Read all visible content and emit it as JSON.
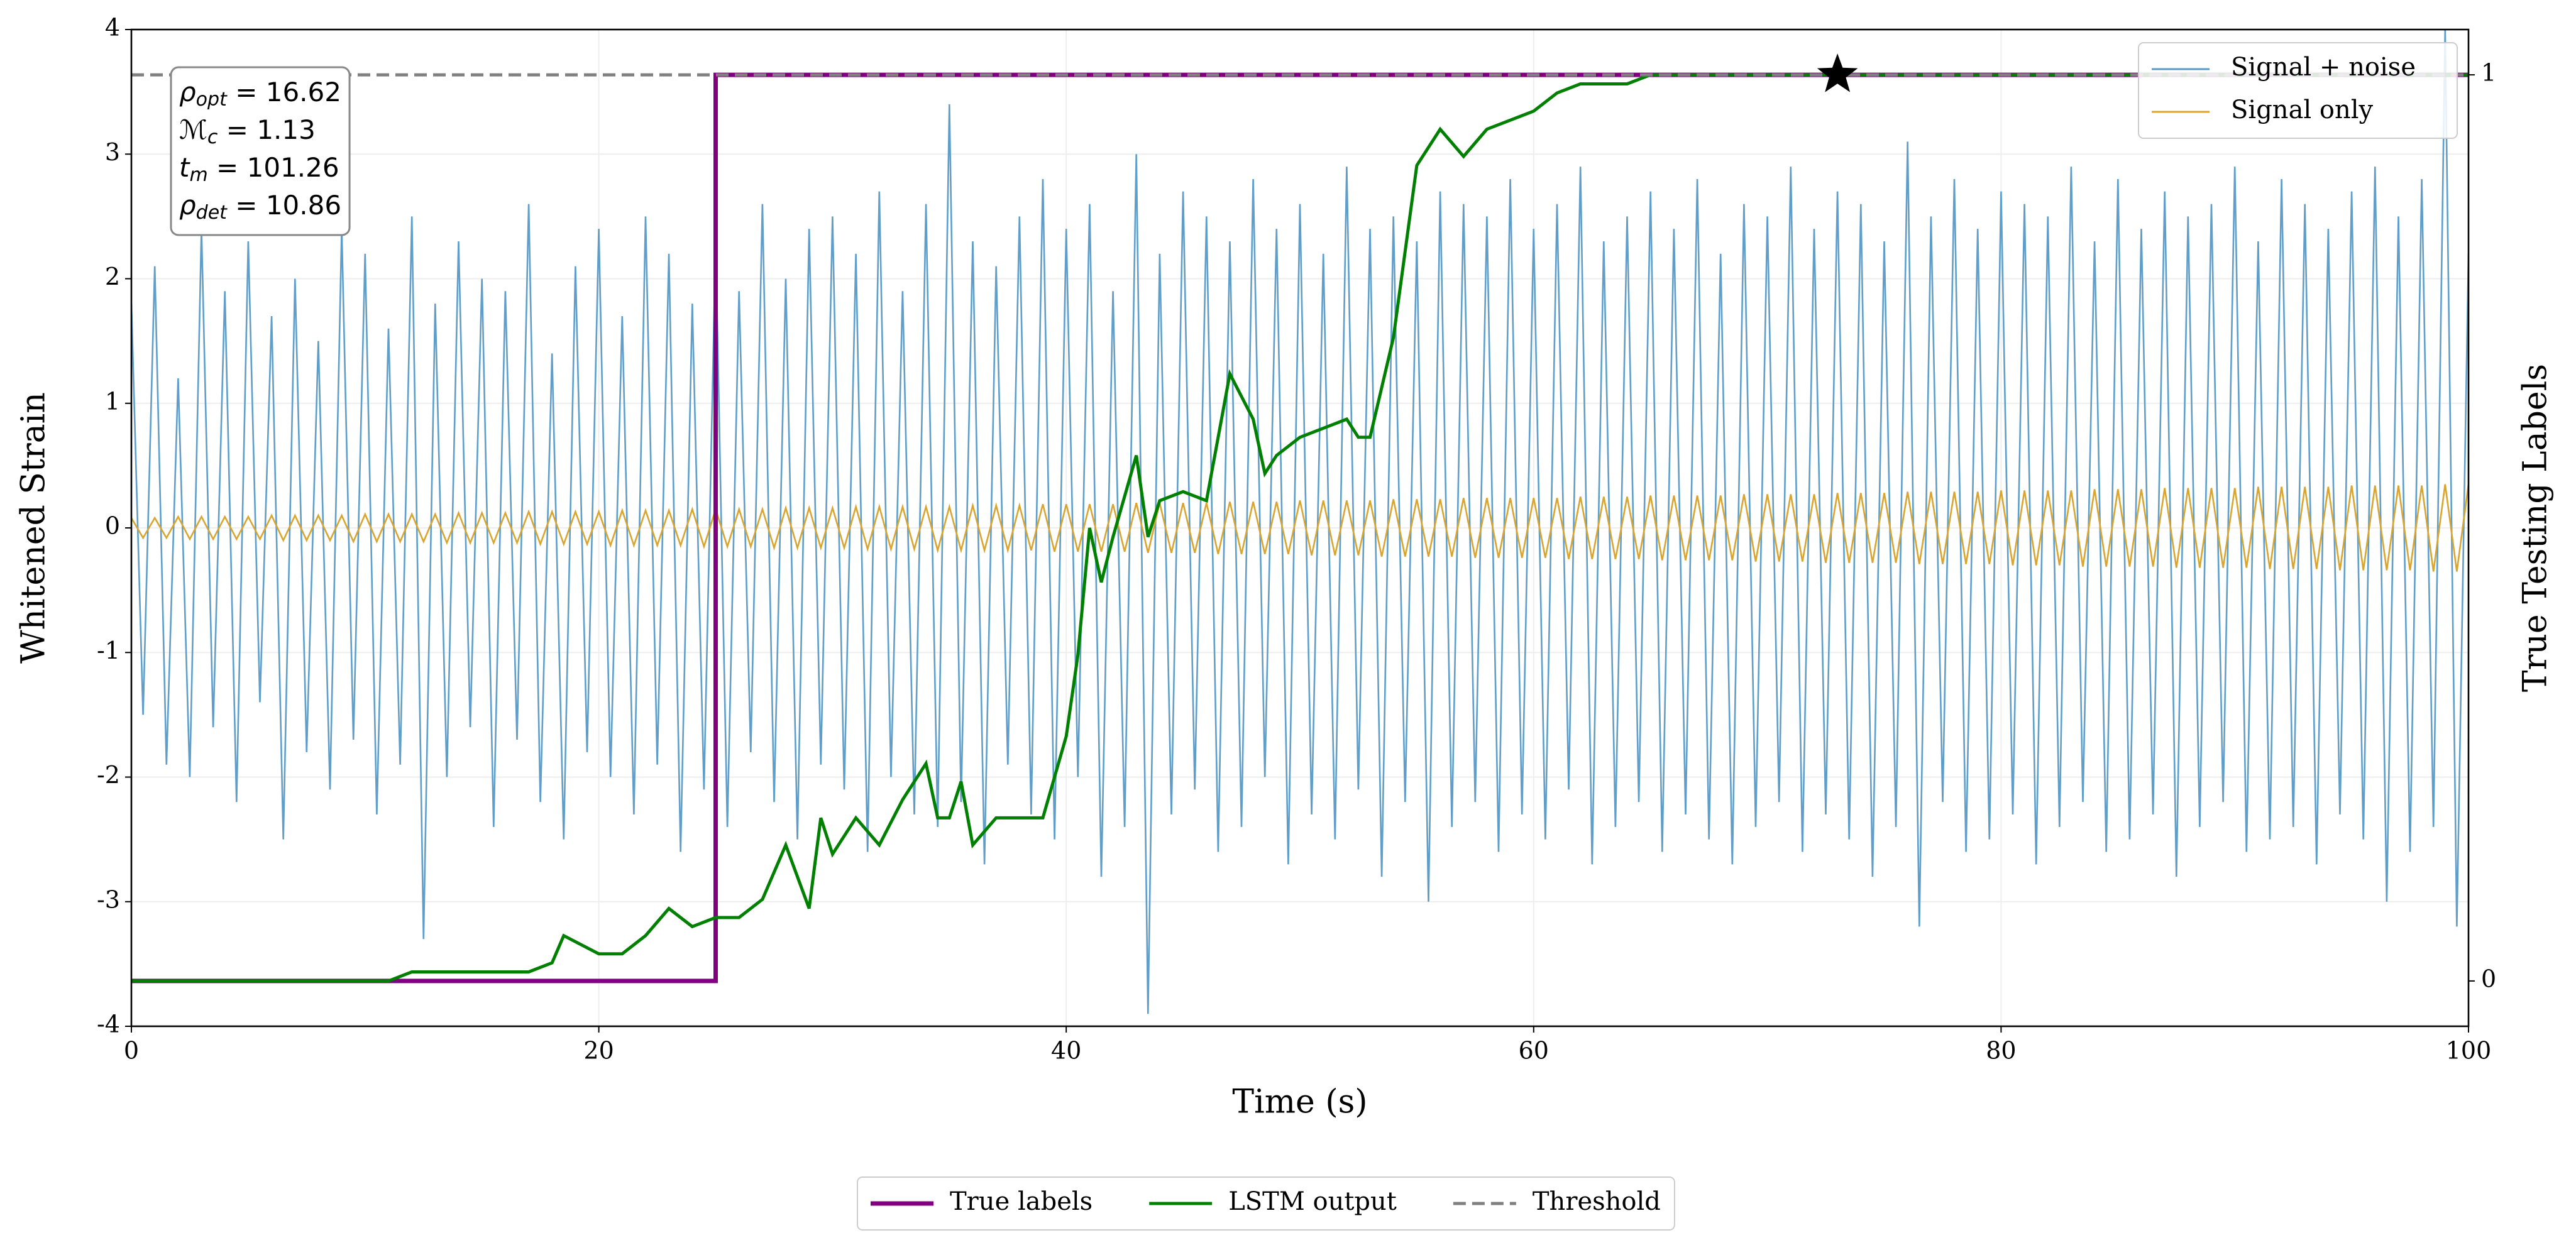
{
  "chart_data": {
    "type": "line",
    "xlabel": "Time (s)",
    "ylabel": "Whitened Strain",
    "y2label": "True Testing Labels",
    "xlim": [
      0,
      100
    ],
    "ylim": [
      -4,
      4
    ],
    "y2lim": [
      -0.05,
      1.05
    ],
    "xticks": [
      0,
      20,
      40,
      60,
      80,
      100
    ],
    "yticks": [
      -4,
      -3,
      -2,
      -1,
      0,
      1,
      2,
      3,
      4
    ],
    "y2ticks": [
      0,
      1
    ],
    "grid": true,
    "series": [
      {
        "name": "Signal + noise",
        "color": "#5799c7",
        "x": [
          0,
          0.5,
          1,
          1.5,
          2,
          2.5,
          3,
          3.5,
          4,
          4.5,
          5,
          5.5,
          6,
          6.5,
          7,
          7.5,
          8,
          8.5,
          9,
          9.5,
          10,
          10.5,
          11,
          11.5,
          12,
          12.5,
          13,
          13.5,
          14,
          14.5,
          15,
          15.5,
          16,
          16.5,
          17,
          17.5,
          18,
          18.5,
          19,
          19.5,
          20,
          20.5,
          21,
          21.5,
          22,
          22.5,
          23,
          23.5,
          24,
          24.5,
          25,
          25.5,
          26,
          26.5,
          27,
          27.5,
          28,
          28.5,
          29,
          29.5,
          30,
          30.5,
          31,
          31.5,
          32,
          32.5,
          33,
          33.5,
          34,
          34.5,
          35,
          35.5,
          36,
          36.5,
          37,
          37.5,
          38,
          38.5,
          39,
          39.5,
          40,
          40.5,
          41,
          41.5,
          42,
          42.5,
          43,
          43.5,
          44,
          44.5,
          45,
          45.5,
          46,
          46.5,
          47,
          47.5,
          48,
          48.5,
          49,
          49.5,
          50,
          50.5,
          51,
          51.5,
          52,
          52.5,
          53,
          53.5,
          54,
          54.5,
          55,
          55.5,
          56,
          56.5,
          57,
          57.5,
          58,
          58.5,
          59,
          59.5,
          60,
          60.5,
          61,
          61.5,
          62,
          62.5,
          63,
          63.5,
          64,
          64.5,
          65,
          65.5,
          66,
          66.5,
          67,
          67.5,
          68,
          68.5,
          69,
          69.5,
          70,
          70.5,
          71,
          71.5,
          72,
          72.5,
          73,
          73.5,
          74,
          74.5,
          75,
          75.5,
          76,
          76.5,
          77,
          77.5,
          78,
          78.5,
          79,
          79.5,
          80,
          80.5,
          81,
          81.5,
          82,
          82.5,
          83,
          83.5,
          84,
          84.5,
          85,
          85.5,
          86,
          86.5,
          87,
          87.5,
          88,
          88.5,
          89,
          89.5,
          90,
          90.5,
          91,
          91.5,
          92,
          92.5,
          93,
          93.5,
          94,
          94.5,
          95,
          95.5,
          96,
          96.5,
          97,
          97.5,
          98,
          98.5,
          99,
          99.5,
          100
        ],
        "values": [
          1.8,
          -1.5,
          2.1,
          -1.9,
          1.2,
          -2.0,
          2.4,
          -1.6,
          1.9,
          -2.2,
          2.3,
          -1.4,
          1.7,
          -2.5,
          2.0,
          -1.8,
          1.5,
          -2.1,
          2.4,
          -1.7,
          2.2,
          -2.3,
          1.6,
          -1.9,
          2.5,
          -3.3,
          1.8,
          -2.0,
          2.3,
          -1.6,
          2.0,
          -2.4,
          1.9,
          -1.7,
          2.6,
          -2.2,
          1.4,
          -2.5,
          2.1,
          -1.8,
          2.4,
          -2.0,
          1.7,
          -2.3,
          2.5,
          -1.9,
          2.2,
          -2.6,
          1.8,
          -2.1,
          2.3,
          -2.4,
          1.9,
          -1.8,
          2.6,
          -2.2,
          2.0,
          -2.5,
          2.4,
          -1.9,
          2.5,
          -2.1,
          2.2,
          -2.6,
          2.7,
          -2.0,
          1.9,
          -2.3,
          2.6,
          -2.4,
          3.4,
          -2.2,
          2.3,
          -2.7,
          2.1,
          -1.9,
          2.5,
          -2.3,
          2.8,
          -2.5,
          2.4,
          -2.0,
          2.6,
          -2.8,
          1.9,
          -2.4,
          3.0,
          -3.9,
          2.2,
          -2.3,
          2.7,
          -2.1,
          2.5,
          -2.6,
          2.3,
          -2.4,
          2.8,
          -2.0,
          2.4,
          -2.7,
          2.6,
          -2.3,
          2.2,
          -2.5,
          2.9,
          -2.1,
          2.4,
          -2.8,
          2.5,
          -2.2,
          2.3,
          -3.0,
          2.7,
          -2.4,
          2.6,
          -2.2,
          2.5,
          -2.6,
          2.8,
          -2.3,
          2.4,
          -2.5,
          2.6,
          -2.1,
          2.9,
          -2.7,
          2.3,
          -2.4,
          2.5,
          -2.2,
          2.7,
          -2.6,
          2.4,
          -2.3,
          2.8,
          -2.5,
          2.2,
          -2.7,
          2.6,
          -2.4,
          2.5,
          -2.2,
          2.9,
          -2.6,
          2.4,
          -2.3,
          2.7,
          -2.5,
          2.6,
          -2.8,
          2.3,
          -2.4,
          3.1,
          -3.2,
          2.5,
          -2.2,
          2.8,
          -2.6,
          2.4,
          -2.5,
          2.7,
          -2.3,
          2.6,
          -2.7,
          2.5,
          -2.4,
          2.9,
          -2.2,
          2.3,
          -2.6,
          2.8,
          -2.5,
          2.4,
          -2.3,
          2.7,
          -2.8,
          2.5,
          -2.4,
          2.6,
          -2.2,
          2.9,
          -2.6,
          2.3,
          -2.5,
          2.8,
          -2.4,
          2.6,
          -2.7,
          2.4,
          -2.3,
          2.7,
          -2.5,
          2.9,
          -3.0,
          2.5,
          -2.6,
          2.8,
          -2.4,
          4.0,
          -3.2,
          2.2
        ]
      },
      {
        "name": "Signal only",
        "color": "#daa52f",
        "x": [
          0,
          0.5,
          1,
          1.5,
          2,
          2.5,
          3,
          3.5,
          4,
          4.5,
          5,
          5.5,
          6,
          6.5,
          7,
          7.5,
          8,
          8.5,
          9,
          9.5,
          10,
          10.5,
          11,
          11.5,
          12,
          12.5,
          13,
          13.5,
          14,
          14.5,
          15,
          15.5,
          16,
          16.5,
          17,
          17.5,
          18,
          18.5,
          19,
          19.5,
          20,
          20.5,
          21,
          21.5,
          22,
          22.5,
          23,
          23.5,
          24,
          24.5,
          25,
          25.5,
          26,
          26.5,
          27,
          27.5,
          28,
          28.5,
          29,
          29.5,
          30,
          30.5,
          31,
          31.5,
          32,
          32.5,
          33,
          33.5,
          34,
          34.5,
          35,
          35.5,
          36,
          36.5,
          37,
          37.5,
          38,
          38.5,
          39,
          39.5,
          40,
          40.5,
          41,
          41.5,
          42,
          42.5,
          43,
          43.5,
          44,
          44.5,
          45,
          45.5,
          46,
          46.5,
          47,
          47.5,
          48,
          48.5,
          49,
          49.5,
          50,
          50.5,
          51,
          51.5,
          52,
          52.5,
          53,
          53.5,
          54,
          54.5,
          55,
          55.5,
          56,
          56.5,
          57,
          57.5,
          58,
          58.5,
          59,
          59.5,
          60,
          60.5,
          61,
          61.5,
          62,
          62.5,
          63,
          63.5,
          64,
          64.5,
          65,
          65.5,
          66,
          66.5,
          67,
          67.5,
          68,
          68.5,
          69,
          69.5,
          70,
          70.5,
          71,
          71.5,
          72,
          72.5,
          73,
          73.5,
          74,
          74.5,
          75,
          75.5,
          76,
          76.5,
          77,
          77.5,
          78,
          78.5,
          79,
          79.5,
          80,
          80.5,
          81,
          81.5,
          82,
          82.5,
          83,
          83.5,
          84,
          84.5,
          85,
          85.5,
          86,
          86.5,
          87,
          87.5,
          88,
          88.5,
          89,
          89.5,
          90,
          90.5,
          91,
          91.5,
          92,
          92.5,
          93,
          93.5,
          94,
          94.5,
          95,
          95.5,
          96,
          96.5,
          97,
          97.5,
          98,
          98.5,
          99,
          99.5,
          100
        ],
        "values": [
          0.08,
          -0.08,
          0.08,
          -0.08,
          0.09,
          -0.09,
          0.09,
          -0.09,
          0.09,
          -0.09,
          0.09,
          -0.09,
          0.1,
          -0.1,
          0.1,
          -0.1,
          0.1,
          -0.1,
          0.1,
          -0.11,
          0.11,
          -0.11,
          0.11,
          -0.11,
          0.11,
          -0.11,
          0.11,
          -0.12,
          0.12,
          -0.12,
          0.12,
          -0.12,
          0.12,
          -0.12,
          0.13,
          -0.13,
          0.13,
          -0.13,
          0.13,
          -0.13,
          0.13,
          -0.14,
          0.14,
          -0.14,
          0.14,
          -0.14,
          0.14,
          -0.14,
          0.15,
          -0.15,
          0.15,
          -0.15,
          0.15,
          -0.15,
          0.15,
          -0.16,
          0.16,
          -0.16,
          0.16,
          -0.16,
          0.16,
          -0.16,
          0.17,
          -0.17,
          0.17,
          -0.17,
          0.17,
          -0.17,
          0.17,
          -0.18,
          0.17,
          -0.18,
          0.18,
          -0.18,
          0.18,
          -0.18,
          0.18,
          -0.18,
          0.19,
          -0.19,
          0.19,
          -0.19,
          0.19,
          -0.19,
          0.19,
          -0.19,
          0.2,
          -0.2,
          0.2,
          -0.2,
          0.2,
          -0.2,
          0.2,
          -0.21,
          0.21,
          -0.21,
          0.21,
          -0.21,
          0.21,
          -0.21,
          0.22,
          -0.22,
          0.22,
          -0.22,
          0.22,
          -0.22,
          0.22,
          -0.23,
          0.23,
          -0.23,
          0.23,
          -0.23,
          0.23,
          -0.23,
          0.24,
          -0.24,
          0.24,
          -0.24,
          0.24,
          -0.24,
          0.24,
          -0.24,
          0.24,
          -0.25,
          0.25,
          -0.25,
          0.25,
          -0.25,
          0.25,
          -0.25,
          0.26,
          -0.26,
          0.26,
          -0.26,
          0.26,
          -0.26,
          0.26,
          -0.26,
          0.27,
          -0.27,
          0.27,
          -0.27,
          0.27,
          -0.27,
          0.27,
          -0.28,
          0.28,
          -0.28,
          0.28,
          -0.28,
          0.28,
          -0.28,
          0.29,
          -0.29,
          0.29,
          -0.29,
          0.29,
          -0.29,
          0.29,
          -0.29,
          0.3,
          -0.3,
          0.3,
          -0.3,
          0.3,
          -0.3,
          0.3,
          -0.31,
          0.31,
          -0.31,
          0.31,
          -0.31,
          0.31,
          -0.31,
          0.32,
          -0.32,
          0.32,
          -0.32,
          0.32,
          -0.32,
          0.32,
          -0.32,
          0.33,
          -0.33,
          0.33,
          -0.33,
          0.33,
          -0.33,
          0.33,
          -0.34,
          0.34,
          -0.34,
          0.34,
          -0.34,
          0.34,
          -0.34,
          0.34,
          -0.35,
          0.35,
          -0.35,
          0.35
        ]
      },
      {
        "name": "True labels",
        "color": "#800080",
        "axis": "y2",
        "x": [
          0,
          25,
          25,
          100
        ],
        "values": [
          0,
          0,
          1,
          1
        ]
      },
      {
        "name": "LSTM output",
        "color": "#008000",
        "axis": "y2",
        "x": [
          0,
          11,
          12,
          13,
          15,
          17,
          18,
          18.5,
          20,
          21,
          22,
          23,
          24,
          25,
          26,
          27,
          28,
          29,
          29.5,
          30,
          31,
          32,
          33,
          34,
          34.5,
          35,
          35.5,
          36,
          37,
          38,
          39,
          40,
          40.5,
          41,
          41.5,
          42,
          43,
          43.5,
          44,
          45,
          46,
          47,
          48,
          48.5,
          49,
          50,
          51,
          52,
          52.5,
          53,
          54,
          55,
          56,
          57,
          58,
          60,
          61,
          62,
          64,
          65,
          70,
          100
        ],
        "values": [
          0,
          0,
          0.01,
          0.01,
          0.01,
          0.01,
          0.02,
          0.05,
          0.03,
          0.03,
          0.05,
          0.08,
          0.06,
          0.07,
          0.07,
          0.09,
          0.15,
          0.08,
          0.18,
          0.14,
          0.18,
          0.15,
          0.2,
          0.24,
          0.18,
          0.18,
          0.22,
          0.15,
          0.18,
          0.18,
          0.18,
          0.27,
          0.36,
          0.5,
          0.44,
          0.49,
          0.58,
          0.49,
          0.53,
          0.54,
          0.53,
          0.67,
          0.62,
          0.56,
          0.58,
          0.6,
          0.61,
          0.62,
          0.6,
          0.6,
          0.71,
          0.9,
          0.94,
          0.91,
          0.94,
          0.96,
          0.98,
          0.99,
          0.99,
          1.0,
          1.0,
          1.0
        ]
      },
      {
        "name": "Threshold",
        "color": "#808080",
        "axis": "y2",
        "dash": true,
        "x": [
          0,
          100
        ],
        "values": [
          1,
          1
        ]
      }
    ],
    "markers": [
      {
        "x": 73,
        "value": 1,
        "axis": "y2",
        "color": "#000000"
      }
    ],
    "annotations": [
      {
        "symbol": "ρ",
        "subscript": "opt",
        "text": " = 16.62"
      },
      {
        "symbol": "ℳ",
        "subscript": "c",
        "text": " = 1.13"
      },
      {
        "symbol": "t",
        "subscript": "m",
        "text": " = 101.26"
      },
      {
        "symbol": "ρ",
        "subscript": "det",
        "text": " = 10.86"
      }
    ]
  }
}
